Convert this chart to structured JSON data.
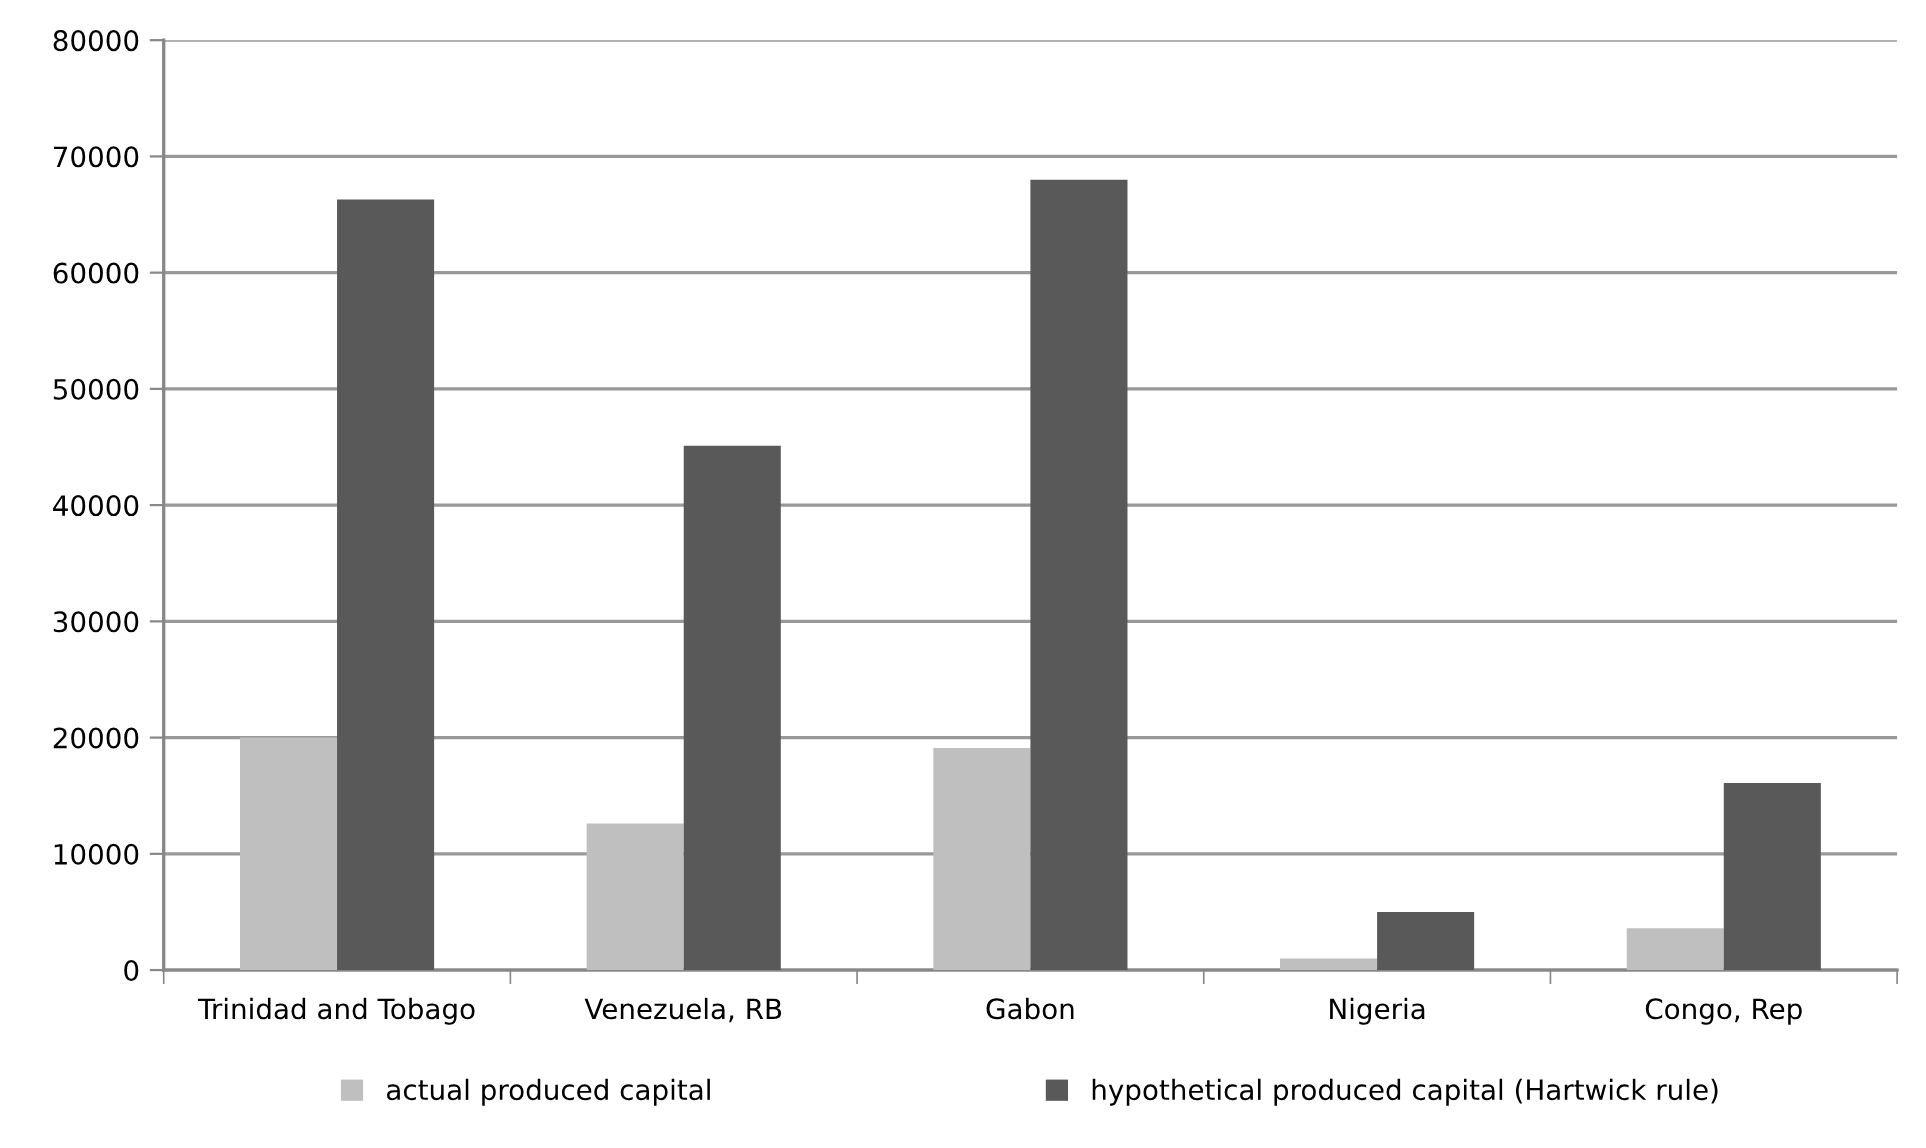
{
  "chart_data": {
    "type": "bar",
    "categories": [
      "Trinidad and Tobago",
      "Venezuela, RB",
      "Gabon",
      "Nigeria",
      "Congo, Rep"
    ],
    "series": [
      {
        "name": "actual produced capital",
        "color": "#bfbfbf",
        "values": [
          20000,
          12600,
          19100,
          1000,
          3600
        ]
      },
      {
        "name": "hypothetical produced capital (Hartwick rule)",
        "color": "#595959",
        "values": [
          66300,
          45100,
          68000,
          5000,
          16100
        ]
      }
    ],
    "ylim": [
      0,
      80000
    ],
    "yticks": [
      0,
      10000,
      20000,
      30000,
      40000,
      50000,
      60000,
      70000,
      80000
    ],
    "grid": "y",
    "legend": "bottom"
  }
}
